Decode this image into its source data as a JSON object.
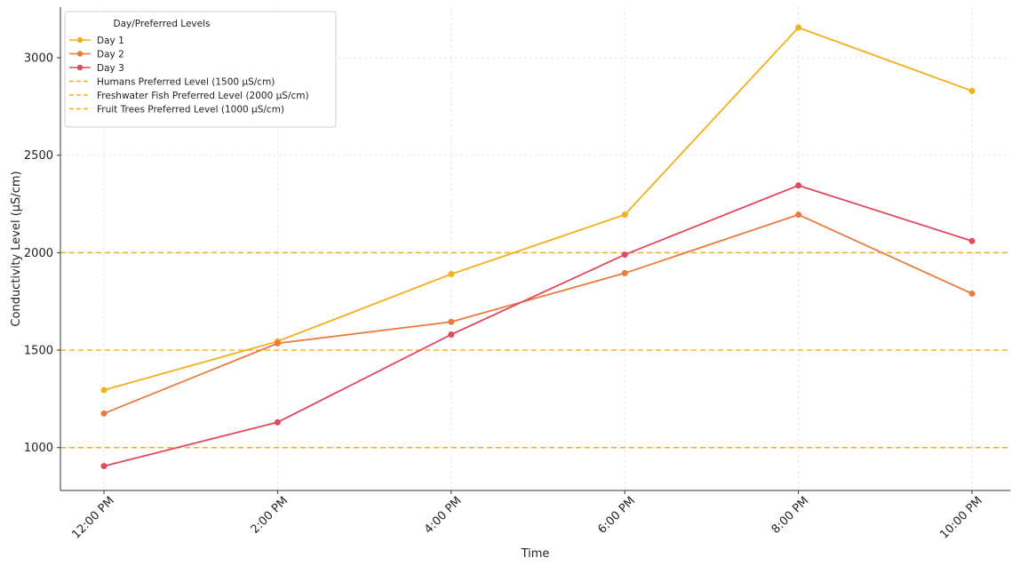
{
  "chart_data": {
    "type": "line",
    "title": "",
    "xlabel": "Time",
    "ylabel": "Conductivity Level (µS/cm)",
    "categories": [
      "12:00 PM",
      "2:00 PM",
      "4:00 PM",
      "6:00 PM",
      "8:00 PM",
      "10:00 PM"
    ],
    "series": [
      {
        "name": "Day 1",
        "color": "#F2B01E",
        "values": [
          1295,
          1545,
          1890,
          2195,
          3155,
          2830
        ]
      },
      {
        "name": "Day 2",
        "color": "#EA7B3D",
        "values": [
          1175,
          1535,
          1645,
          1895,
          2195,
          1790
        ]
      },
      {
        "name": "Day 3",
        "color": "#E04A5F",
        "values": [
          905,
          1130,
          1580,
          1990,
          2345,
          2060
        ]
      }
    ],
    "reference_lines": [
      {
        "name": "Humans Preferred Level (1500 µS/cm)",
        "value": 1500,
        "color": "#F2B01E",
        "style": "dashed"
      },
      {
        "name": "Freshwater Fish Preferred Level (2000 µS/cm)",
        "value": 2000,
        "color": "#F2B01E",
        "style": "dashed"
      },
      {
        "name": "Fruit Trees Preferred Level (1000 µS/cm)",
        "value": 1000,
        "color": "#F2B01E",
        "style": "dashed"
      }
    ],
    "yticks": [
      1000,
      1500,
      2000,
      2500,
      3000
    ],
    "ylim": [
      780,
      3260
    ],
    "grid": true,
    "legend": {
      "title": "Day/Preferred Levels",
      "placement": "top-left"
    }
  }
}
